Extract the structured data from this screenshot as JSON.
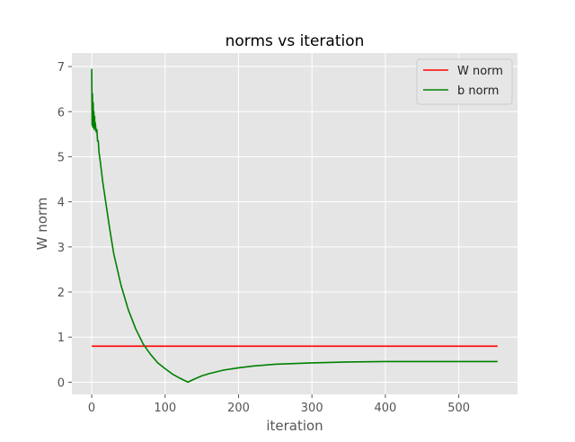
{
  "chart_data": {
    "type": "line",
    "title": "norms vs iteration",
    "xlabel": "iteration",
    "ylabel": "W norm",
    "xlim": [
      -27,
      580
    ],
    "ylim": [
      -0.27,
      7.3
    ],
    "xticks": [
      0,
      100,
      200,
      300,
      400,
      500
    ],
    "yticks": [
      0,
      1,
      2,
      3,
      4,
      5,
      6,
      7
    ],
    "grid": true,
    "legend_position": "top-right",
    "series": [
      {
        "name": "W norm",
        "color": "#ff0000",
        "x": [
          0,
          553
        ],
        "y": [
          0.8,
          0.8
        ]
      },
      {
        "name": "b norm",
        "color": "#008000",
        "x": [
          0,
          0.5,
          1,
          1.5,
          2,
          2.5,
          3,
          3.5,
          4,
          4.5,
          5,
          6,
          7,
          8,
          9,
          10,
          12,
          15,
          20,
          25,
          30,
          40,
          50,
          60,
          70,
          80,
          90,
          100,
          110,
          120,
          131,
          140,
          150,
          160,
          170,
          180,
          200,
          220,
          250,
          300,
          350,
          400,
          450,
          500,
          553
        ],
        "y": [
          6.95,
          5.7,
          6.4,
          5.65,
          6.2,
          5.85,
          6.0,
          5.6,
          5.9,
          5.65,
          5.75,
          5.55,
          5.6,
          5.35,
          5.35,
          5.1,
          4.85,
          4.45,
          3.9,
          3.35,
          2.85,
          2.15,
          1.6,
          1.18,
          0.85,
          0.62,
          0.43,
          0.3,
          0.18,
          0.09,
          0.0,
          0.07,
          0.14,
          0.19,
          0.23,
          0.27,
          0.32,
          0.36,
          0.4,
          0.43,
          0.45,
          0.46,
          0.46,
          0.46,
          0.46
        ]
      }
    ]
  }
}
